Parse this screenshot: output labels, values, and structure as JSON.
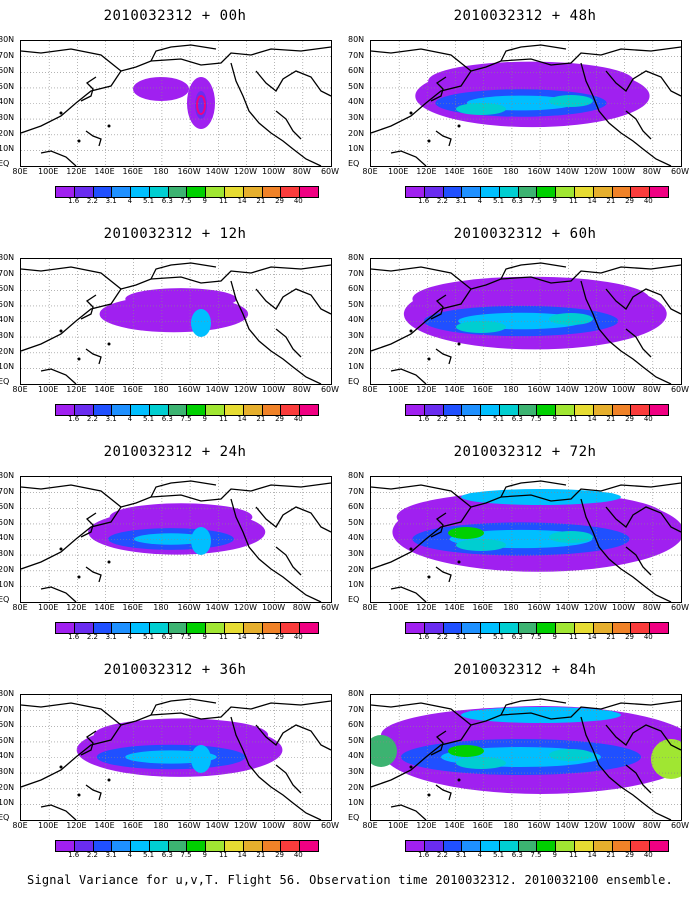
{
  "panels": [
    {
      "title": "2010032312 + 00h",
      "lead": 0
    },
    {
      "title": "2010032312 + 48h",
      "lead": 48
    },
    {
      "title": "2010032312 + 12h",
      "lead": 12
    },
    {
      "title": "2010032312 + 60h",
      "lead": 60
    },
    {
      "title": "2010032312 + 24h",
      "lead": 24
    },
    {
      "title": "2010032312 + 72h",
      "lead": 72
    },
    {
      "title": "2010032312 + 36h",
      "lead": 36
    },
    {
      "title": "2010032312 + 84h",
      "lead": 84
    }
  ],
  "axes": {
    "lat_labels": [
      "80N",
      "70N",
      "60N",
      "50N",
      "40N",
      "30N",
      "20N",
      "10N",
      "EQ"
    ],
    "lon_labels": [
      "80E",
      "100E",
      "120E",
      "140E",
      "160E",
      "180",
      "160W",
      "140W",
      "120W",
      "100W",
      "80W",
      "60W"
    ]
  },
  "colorbar": {
    "levels": [
      "1.6",
      "2.2",
      "3.1",
      "4",
      "5.1",
      "6.3",
      "7.5",
      "9",
      "11",
      "14",
      "21",
      "29",
      "40"
    ],
    "colors": [
      "#a020f0",
      "#6a2cf0",
      "#2050ff",
      "#1e90ff",
      "#00bfff",
      "#00ced1",
      "#3cb371",
      "#00d000",
      "#a0e632",
      "#e6dc32",
      "#e6af2d",
      "#f08228",
      "#fa3c3c",
      "#f00082"
    ]
  },
  "footer": "Signal Variance for u,v,T. Flight 56. Observation time 2010032312. 2010032100 ensemble."
}
